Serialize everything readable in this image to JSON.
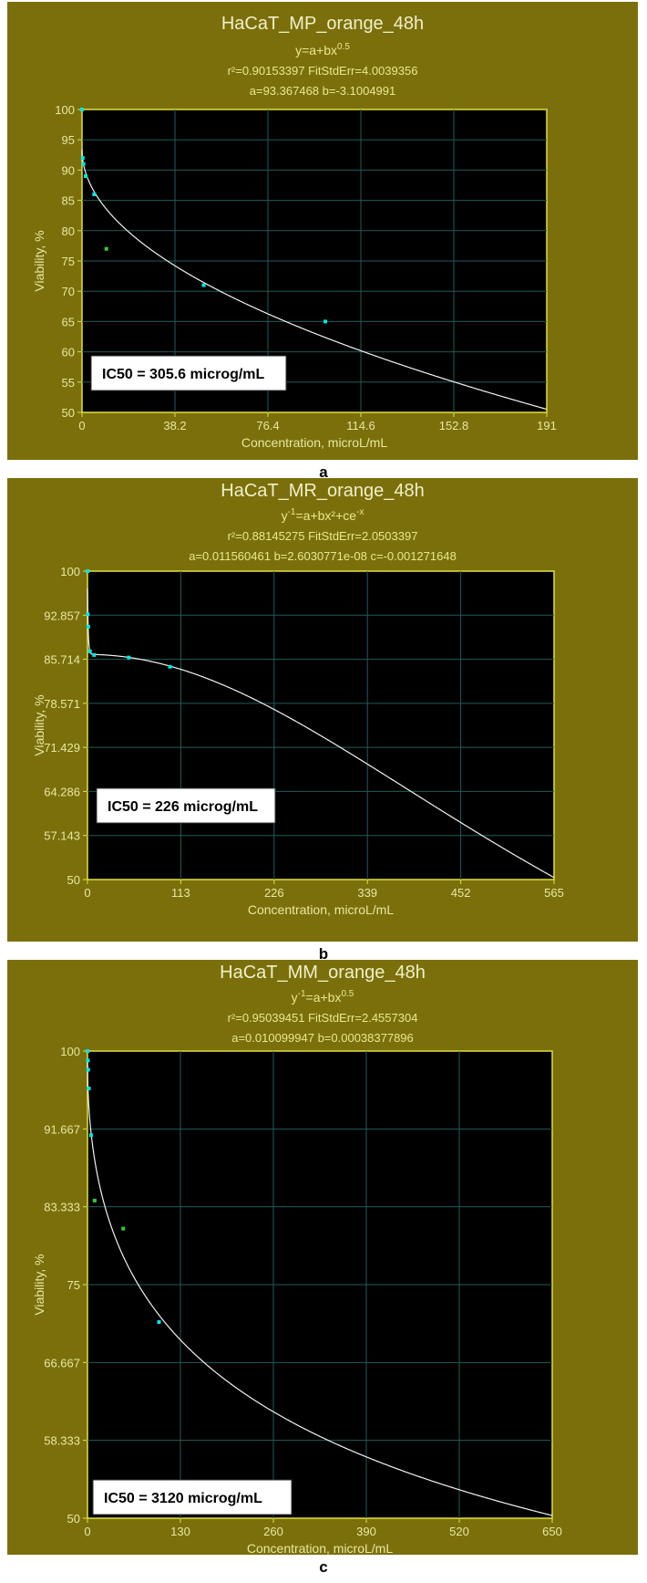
{
  "chart_data": [
    {
      "type": "scatter",
      "title": "HaCaT_MP_orange_48h",
      "equation": {
        "base": "y=a+bx",
        "sup": "0.5",
        "tail": ""
      },
      "stats_line": "r²=0.90153397   FitStdErr=4.0039356",
      "params_line": "a=93.367468   b=-3.1004991",
      "xlabel": "Concentration, microL/mL",
      "ylabel": "Viability, %",
      "xlim": [
        0,
        191
      ],
      "ylim": [
        50,
        100
      ],
      "xticks": [
        "0",
        "38.2",
        "76.4",
        "114.6",
        "152.8",
        "191"
      ],
      "yticks": [
        "50",
        "55",
        "60",
        "65",
        "70",
        "75",
        "80",
        "85",
        "90",
        "95",
        "100"
      ],
      "grid": true,
      "fit": {
        "model": "y=a+b*x^0.5",
        "a": 93.367468,
        "b": -3.1004991
      },
      "series": [
        {
          "color": "#00e5e5",
          "points": [
            [
              0,
              100
            ],
            [
              0.3,
              92
            ],
            [
              0.6,
              91
            ],
            [
              1.5,
              89
            ],
            [
              5,
              86
            ],
            [
              50,
              71
            ],
            [
              100,
              65
            ]
          ]
        },
        {
          "color": "#33cc33",
          "points": [
            [
              10,
              77
            ]
          ]
        }
      ],
      "annotation": "IC50 = 305.6 microg/mL",
      "caption": "a"
    },
    {
      "type": "scatter",
      "title": "HaCaT_MR_orange_48h",
      "equation": {
        "base": "y",
        "sup": "-1",
        "tail": "=a+bx²+ce",
        "sup2": "-x"
      },
      "stats_line": "r²=0.88145275   FitStdErr=2.0503397",
      "params_line": "a=0.011560461   b=2.6030771e-08   c=-0.001271648",
      "xlabel": "Concentration, microL/mL",
      "ylabel": "Viability, %",
      "xlim": [
        0,
        565
      ],
      "ylim": [
        50,
        100
      ],
      "xticks": [
        "0",
        "113",
        "226",
        "339",
        "452",
        "565"
      ],
      "yticks": [
        "50",
        "57.143",
        "64.286",
        "71.429",
        "78.571",
        "85.714",
        "92.857",
        "100"
      ],
      "grid": true,
      "fit": {
        "model": "1/y=a+b*x^2+c*e^-x",
        "a": 0.011560461,
        "b": 2.6030771e-08,
        "c": -0.001271648
      },
      "series": [
        {
          "color": "#00e5e5",
          "points": [
            [
              0,
              100
            ],
            [
              0.3,
              93
            ],
            [
              1,
              91
            ],
            [
              3,
              87
            ],
            [
              8,
              86.4
            ],
            [
              50,
              86
            ],
            [
              100,
              84.5
            ]
          ]
        }
      ],
      "annotation": "IC50 = 226 microg/mL",
      "caption": "b"
    },
    {
      "type": "scatter",
      "title": "HaCaT_MM_orange_48h",
      "equation": {
        "base": "y",
        "sup": "-1",
        "tail": "=a+bx",
        "sup2": "0.5"
      },
      "stats_line": "r²=0.95039451   FitStdErr=2.4557304",
      "params_line": "a=0.010099947   b=0.00038377896",
      "xlabel": "Concentration, microL/mL",
      "ylabel": "Viability, %",
      "xlim": [
        0,
        650
      ],
      "ylim": [
        50,
        100
      ],
      "xticks": [
        "0",
        "130",
        "260",
        "390",
        "520",
        "650"
      ],
      "yticks": [
        "50",
        "58.333",
        "66.667",
        "75",
        "83.333",
        "91.667",
        "100"
      ],
      "grid": true,
      "fit": {
        "model": "1/y=a+b*x^0.5",
        "a": 0.010099947,
        "b": 0.00038377896
      },
      "series": [
        {
          "color": "#00e5e5",
          "points": [
            [
              0,
              100
            ],
            [
              0.5,
              99
            ],
            [
              1,
              98
            ],
            [
              2,
              96
            ],
            [
              5,
              91
            ],
            [
              100,
              71
            ]
          ]
        },
        {
          "color": "#33cc33",
          "points": [
            [
              10,
              84
            ],
            [
              50,
              81
            ]
          ]
        }
      ],
      "annotation": "IC50 = 3120 microg/mL",
      "caption": "c"
    }
  ]
}
